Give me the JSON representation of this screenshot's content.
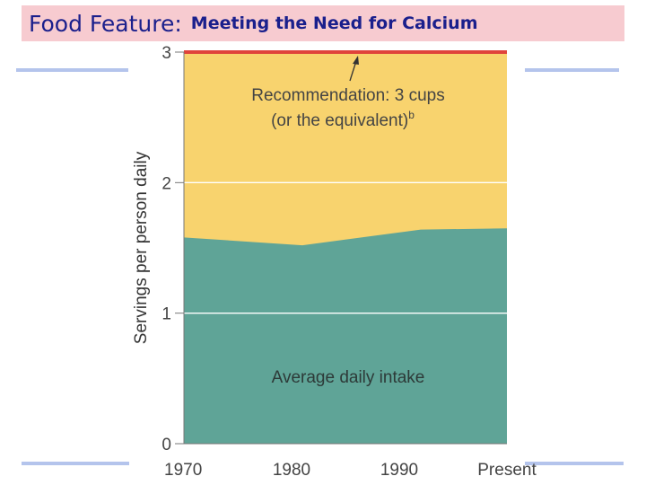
{
  "slide": {
    "title_main": "Food Feature:",
    "title_sub": "Meeting the Need for Calcium"
  },
  "colors": {
    "recommendation_fill": "#f8d36e",
    "intake_fill": "#5fa497",
    "recommendation_line": "#e0433b",
    "title_band": "#f7cbd0",
    "title_text": "#1a1f8c"
  },
  "chart_data": {
    "type": "area",
    "ylabel": "Servings per person daily",
    "xlabel": "",
    "ylim": [
      0,
      3
    ],
    "yticks": [
      "0",
      "1",
      "2",
      "3"
    ],
    "categories": [
      "1970",
      "1980",
      "1990",
      "Present"
    ],
    "x": [
      1970,
      1980,
      1990,
      2000
    ],
    "grid": true,
    "series": [
      {
        "name": "Average daily intake",
        "x": [
          1970,
          1981,
          1992,
          2000
        ],
        "values": [
          1.58,
          1.52,
          1.64,
          1.65
        ]
      }
    ],
    "recommendation": {
      "value": 3,
      "label_line1": "Recommendation: 3 cups",
      "label_line2": "(or the equivalent)",
      "label_sup": "b"
    }
  }
}
